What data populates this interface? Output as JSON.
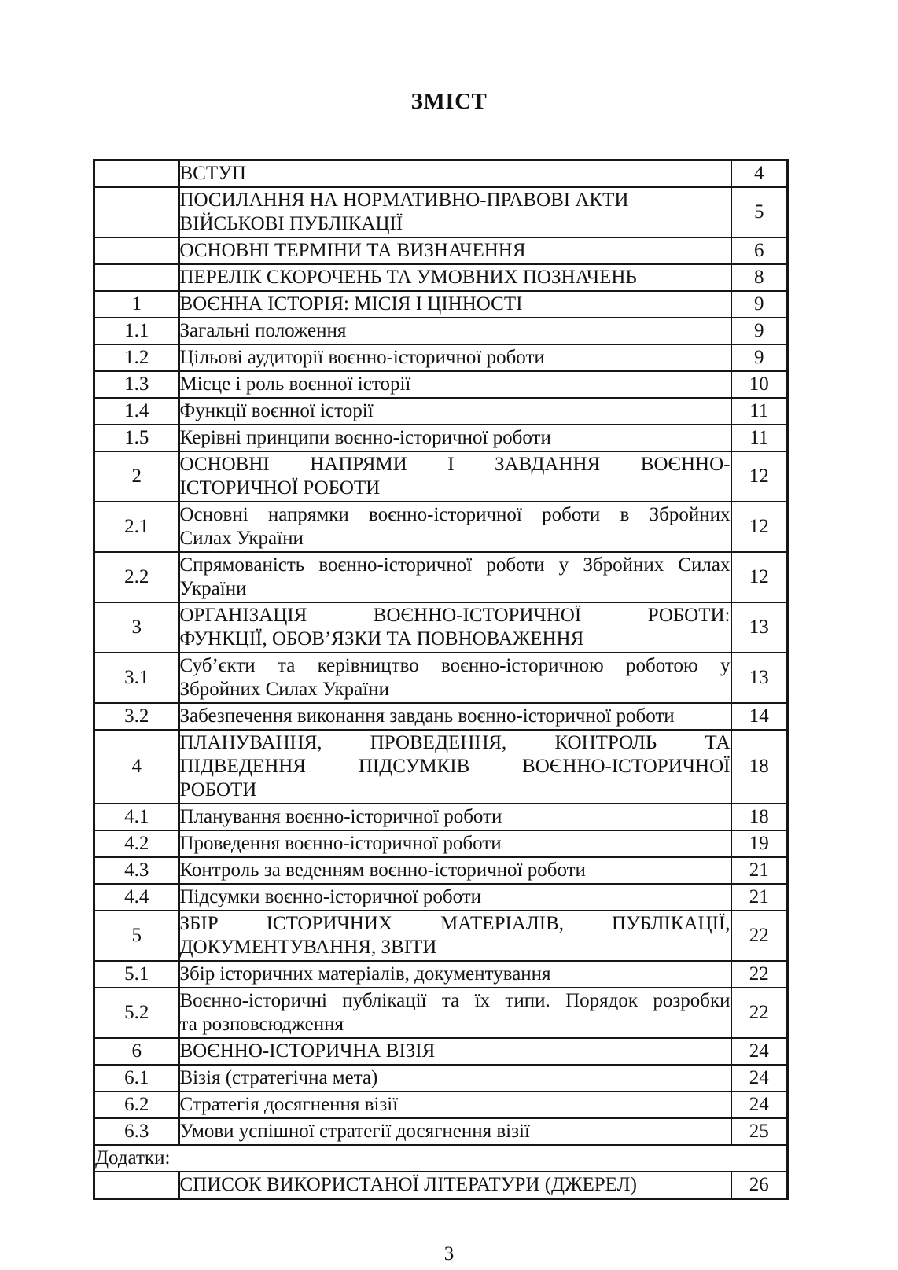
{
  "doc": {
    "title": "ЗМІСТ",
    "footer_page_number": "3"
  },
  "toc": {
    "rows": [
      {
        "num": "",
        "lines": [
          "ВСТУП"
        ],
        "page": "4",
        "justify": false,
        "span": false
      },
      {
        "num": "",
        "lines": [
          "ПОСИЛАННЯ НА НОРМАТИВНО-ПРАВОВІ АКТИ",
          "ВІЙСЬКОВІ ПУБЛІКАЦІЇ"
        ],
        "page": "5",
        "justify": false,
        "span": false
      },
      {
        "num": "",
        "lines": [
          "ОСНОВНІ ТЕРМІНИ ТА ВИЗНАЧЕННЯ"
        ],
        "page": "6",
        "justify": false,
        "span": false
      },
      {
        "num": "",
        "lines": [
          "ПЕРЕЛІК СКОРОЧЕНЬ ТА УМОВНИХ ПОЗНАЧЕНЬ"
        ],
        "page": "8",
        "justify": false,
        "span": false
      },
      {
        "num": "1",
        "lines": [
          "ВОЄННА ІСТОРІЯ: МІСІЯ І ЦІННОСТІ"
        ],
        "page": "9",
        "justify": false,
        "span": false
      },
      {
        "num": "1.1",
        "lines": [
          "Загальні положення"
        ],
        "page": "9",
        "justify": false,
        "span": false
      },
      {
        "num": "1.2",
        "lines": [
          "Цільові аудиторії воєнно-історичної роботи"
        ],
        "page": "9",
        "justify": false,
        "span": false
      },
      {
        "num": "1.3",
        "lines": [
          "Місце і роль воєнної історії"
        ],
        "page": "10",
        "justify": false,
        "span": false
      },
      {
        "num": "1.4",
        "lines": [
          "Функції воєнної історії"
        ],
        "page": "11",
        "justify": false,
        "span": false
      },
      {
        "num": "1.5",
        "lines": [
          "Керівні принципи воєнно-історичної роботи"
        ],
        "page": "11",
        "justify": false,
        "span": false
      },
      {
        "num": "2",
        "lines": [
          "ОСНОВНІ НАПРЯМИ І ЗАВДАННЯ ВОЄННО-",
          "ІСТОРИЧНОЇ РОБОТИ"
        ],
        "page": "12",
        "justify": true,
        "span": false
      },
      {
        "num": "2.1",
        "lines": [
          "Основні напрямки воєнно-історичної роботи в Збройних",
          "Силах України"
        ],
        "page": "12",
        "justify": true,
        "span": false
      },
      {
        "num": "2.2",
        "lines": [
          "Спрямованість воєнно-історичної роботи у Збройних Силах",
          "України"
        ],
        "page": "12",
        "justify": true,
        "span": false
      },
      {
        "num": "3",
        "lines": [
          "ОРГАНІЗАЦІЯ ВОЄННО-ІСТОРИЧНОЇ РОБОТИ:",
          "ФУНКЦІЇ, ОБОВ’ЯЗКИ ТА ПОВНОВАЖЕННЯ"
        ],
        "page": "13",
        "justify": true,
        "span": false
      },
      {
        "num": "3.1",
        "lines": [
          "Суб’єкти та керівництво воєнно-історичною роботою у",
          "Збройних Силах України"
        ],
        "page": "13",
        "justify": true,
        "span": false
      },
      {
        "num": "3.2",
        "lines": [
          "Забезпечення виконання завдань воєнно-історичної роботи"
        ],
        "page": "14",
        "justify": false,
        "span": false
      },
      {
        "num": "4",
        "lines": [
          "ПЛАНУВАННЯ, ПРОВЕДЕННЯ, КОНТРОЛЬ ТА",
          "ПІДВЕДЕННЯ ПІДСУМКІВ ВОЄННО-ІСТОРИЧНОЇ",
          "РОБОТИ"
        ],
        "page": "18",
        "justify": true,
        "span": false
      },
      {
        "num": "4.1",
        "lines": [
          "Планування воєнно-історичної роботи"
        ],
        "page": "18",
        "justify": false,
        "span": false
      },
      {
        "num": "4.2",
        "lines": [
          "Проведення воєнно-історичної роботи"
        ],
        "page": "19",
        "justify": false,
        "span": false
      },
      {
        "num": "4.3",
        "lines": [
          "Контроль за веденням воєнно-історичної роботи"
        ],
        "page": "21",
        "justify": false,
        "span": false
      },
      {
        "num": "4.4",
        "lines": [
          "Підсумки воєнно-історичної роботи"
        ],
        "page": "21",
        "justify": false,
        "span": false
      },
      {
        "num": "5",
        "lines": [
          "ЗБІР ІСТОРИЧНИХ МАТЕРІАЛІВ, ПУБЛІКАЦІЇ,",
          "ДОКУМЕНТУВАННЯ, ЗВІТИ"
        ],
        "page": "22",
        "justify": true,
        "span": false
      },
      {
        "num": "5.1",
        "lines": [
          "Збір історичних матеріалів, документування"
        ],
        "page": "22",
        "justify": false,
        "span": false
      },
      {
        "num": "5.2",
        "lines": [
          "Воєнно-історичні публікації та їх типи. Порядок розробки",
          "та розповсюдження"
        ],
        "page": "22",
        "justify": true,
        "span": false
      },
      {
        "num": "6",
        "lines": [
          "ВОЄННО-ІСТОРИЧНА ВІЗІЯ"
        ],
        "page": "24",
        "justify": false,
        "span": false
      },
      {
        "num": "6.1",
        "lines": [
          "Візія (стратегічна мета)"
        ],
        "page": "24",
        "justify": false,
        "span": false
      },
      {
        "num": "6.2",
        "lines": [
          "Стратегія досягнення візії"
        ],
        "page": "24",
        "justify": false,
        "span": false
      },
      {
        "num": "6.3",
        "lines": [
          "Умови успішної стратегії досягнення візії"
        ],
        "page": "25",
        "justify": false,
        "span": false
      },
      {
        "num": "",
        "lines": [
          "Додатки:"
        ],
        "page": "",
        "justify": false,
        "span": true
      },
      {
        "num": "",
        "lines": [
          "СПИСОК ВИКОРИСТАНОЇ ЛІТЕРАТУРИ (ДЖЕРЕЛ)"
        ],
        "page": "26",
        "justify": false,
        "span": false
      }
    ]
  }
}
